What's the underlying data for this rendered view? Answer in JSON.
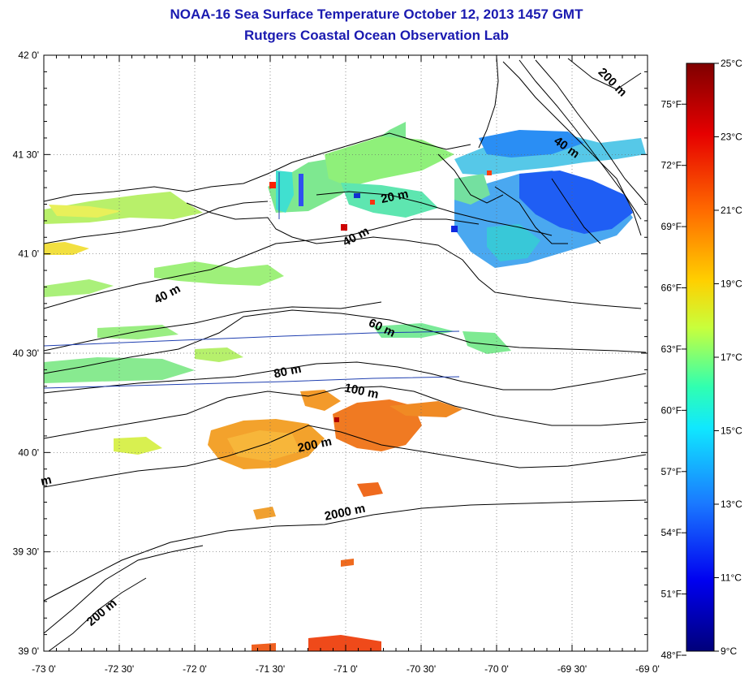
{
  "title": "NOAA-16 Sea Surface Temperature October 12, 2013 1457 GMT",
  "subtitle": "Rutgers Coastal Ocean Observation Lab",
  "lat_ticks": [
    "42 0'",
    "41 30'",
    "41 0'",
    "40 30'",
    "40 0'",
    "39 30'",
    "39 0'"
  ],
  "lon_ticks": [
    "-73 0'",
    "-72 30'",
    "-72 0'",
    "-71 30'",
    "-71 0'",
    "-70 30'",
    "-70 0'",
    "-69 30'",
    "-69 0'"
  ],
  "colorbar": {
    "celsius": [
      "25°C",
      "23°C",
      "21°C",
      "19°C",
      "17°C",
      "15°C",
      "13°C",
      "11°C",
      "9°C"
    ],
    "fahrenheit": [
      "75°F",
      "72°F",
      "69°F",
      "66°F",
      "63°F",
      "60°F",
      "57°F",
      "54°F",
      "51°F",
      "48°F"
    ]
  },
  "depth_labels": [
    {
      "text": "200 m",
      "lon": -69.25,
      "lat": 41.85
    },
    {
      "text": "40 m",
      "lon": -69.55,
      "lat": 41.52
    },
    {
      "text": "20 m",
      "lon": -70.67,
      "lat": 41.27
    },
    {
      "text": "40 m",
      "lon": -70.92,
      "lat": 41.07
    },
    {
      "text": "40 m",
      "lon": -72.17,
      "lat": 40.78
    },
    {
      "text": "60 m",
      "lon": -70.77,
      "lat": 40.61
    },
    {
      "text": "80 m",
      "lon": -71.38,
      "lat": 40.39
    },
    {
      "text": "100 m",
      "lon": -70.9,
      "lat": 40.29
    },
    {
      "text": "200 m",
      "lon": -71.2,
      "lat": 40.02
    },
    {
      "text": "2000 m",
      "lon": -71.0,
      "lat": 39.68
    },
    {
      "text": "200 m",
      "lon": -72.6,
      "lat": 39.18
    },
    {
      "text": "m",
      "lon": -72.98,
      "lat": 39.84
    }
  ],
  "colors": {
    "title": "#1a1ab0",
    "colorbar_stops": [
      "#7f0000",
      "#ff2000",
      "#ff8c00",
      "#ffe000",
      "#a8ff50",
      "#20ffdc",
      "#1e90ff",
      "#0000ff",
      "#00008b"
    ]
  }
}
